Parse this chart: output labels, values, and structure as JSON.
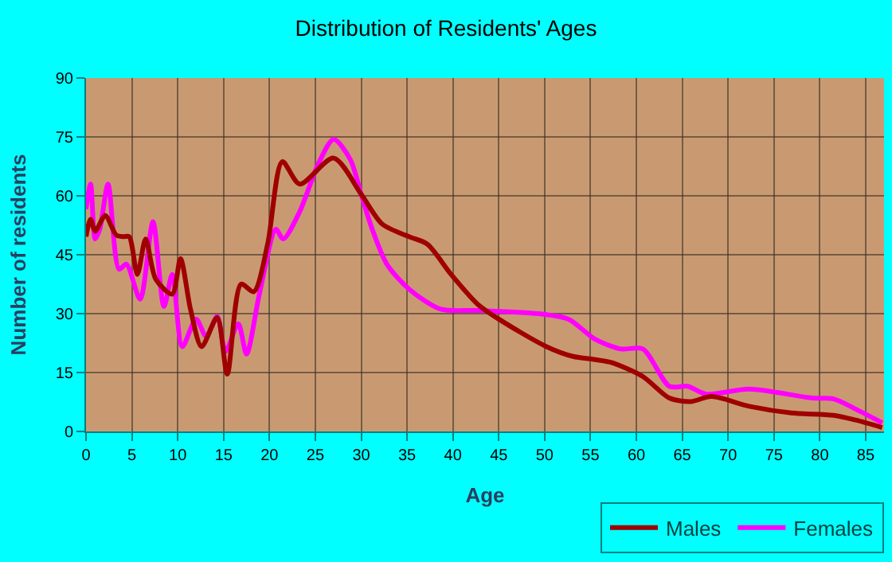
{
  "chart_data": {
    "type": "line",
    "title": "Distribution of Residents' Ages",
    "xlabel": "Age",
    "ylabel": "Number of residents",
    "xlim": [
      0,
      87
    ],
    "xticks": [
      0,
      5,
      10,
      15,
      20,
      25,
      30,
      35,
      40,
      45,
      50,
      55,
      60,
      65,
      70,
      75,
      80,
      85
    ],
    "ylim": [
      0,
      90
    ],
    "yticks": [
      0,
      15,
      30,
      45,
      60,
      75,
      90
    ],
    "grid": true,
    "legend": "bottom right",
    "marker": "none",
    "line_style": "solid",
    "series": [
      {
        "name": "Males",
        "color": "#a00000",
        "x": [
          0,
          0.5,
          1,
          2.1,
          3.3,
          4.1,
          4.7,
          5.6,
          6.5,
          7.6,
          9.4,
          10.3,
          11.4,
          12.6,
          14.3,
          15.4,
          16.9,
          18.3,
          19.8,
          21.4,
          23.3,
          27,
          30,
          32.3,
          35.2,
          37.2,
          39.8,
          42.7,
          45,
          50.2,
          53.1,
          55.5,
          57.2,
          60.7,
          63.6,
          65.9,
          68.2,
          72.3,
          76.9,
          81.5,
          83.9,
          86.8
        ],
        "values": [
          49.6,
          54,
          51,
          55,
          50,
          49.6,
          49.6,
          40,
          49,
          38.8,
          35,
          44,
          31,
          21.6,
          29,
          14.6,
          37.5,
          35.6,
          47.7,
          68.7,
          63,
          69.6,
          60.4,
          52.8,
          49.6,
          47.7,
          40,
          32.4,
          28.6,
          21.6,
          19.1,
          18.3,
          17.6,
          14,
          8.5,
          7.6,
          8.9,
          6.4,
          4.7,
          4.1,
          2.9,
          1
        ]
      },
      {
        "name": "Females",
        "color": "#ff00ff",
        "x": [
          0,
          0.5,
          1,
          1.5,
          2.4,
          3.6,
          4.4,
          5.9,
          7.3,
          8.5,
          9.4,
          10.5,
          12,
          13.1,
          14.3,
          15.2,
          16.6,
          17.5,
          18.9,
          20.7,
          21.5,
          23.3,
          25.3,
          27,
          28.8,
          30,
          31.2,
          32.8,
          35.2,
          38.6,
          42.7,
          49.7,
          52.6,
          55.5,
          58.3,
          60.7,
          63.6,
          65.6,
          67.6,
          72.3,
          79.2,
          81.5,
          83.9,
          86.8
        ],
        "values": [
          56.6,
          63,
          49,
          51.5,
          63,
          41.3,
          42.6,
          33.7,
          53.4,
          31.8,
          40,
          21.6,
          28.6,
          24.2,
          29.3,
          20.4,
          27.4,
          19.7,
          35,
          51.5,
          49,
          56,
          68,
          74.4,
          69.3,
          60.4,
          51.5,
          42.6,
          36.3,
          31.2,
          30.8,
          29.9,
          28.6,
          23.5,
          21,
          21,
          11.5,
          11.5,
          9.5,
          10.8,
          8.5,
          8.3,
          5.7,
          2.2
        ]
      }
    ]
  }
}
